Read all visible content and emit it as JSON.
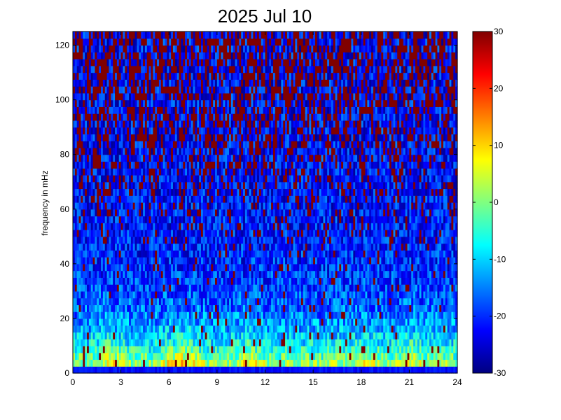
{
  "chart_data": {
    "type": "heatmap",
    "title": "2025 Jul 10",
    "xlabel": "",
    "ylabel": "frequency in mHz",
    "xlim": [
      0,
      24
    ],
    "ylim": [
      0,
      125
    ],
    "x_ticks": [
      "0",
      "3",
      "6",
      "9",
      "12",
      "15",
      "18",
      "21",
      "24"
    ],
    "y_ticks": [
      "0",
      "20",
      "40",
      "60",
      "80",
      "100",
      "120"
    ],
    "colorbar": {
      "range": [
        -30,
        30
      ],
      "ticks": [
        "30",
        "20",
        "10",
        "0",
        "-10",
        "-20",
        "-30"
      ],
      "colormap": "jet"
    },
    "grid": false,
    "description_of_field": {
      "x_resolution_hours": 0.125,
      "y_resolution_mHz": 2.5,
      "bright_bands_hours": [
        2.3,
        6.2,
        7.2,
        11.0,
        18.2,
        21.0
      ],
      "low_frequency_band_mHz": [
        0,
        25
      ]
    }
  }
}
